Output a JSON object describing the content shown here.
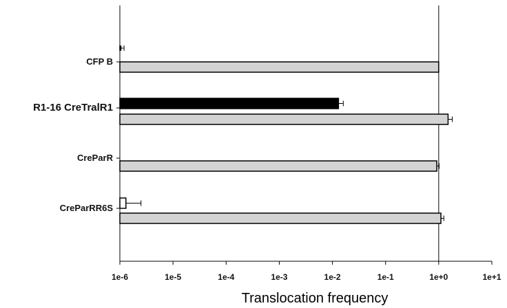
{
  "chart_data": {
    "type": "bar",
    "orientation": "horizontal",
    "xscale": "log",
    "xlabel": "Translocation frequency",
    "ylabel": "",
    "title": "",
    "xlim": [
      1e-06,
      10
    ],
    "x_tick_labels": [
      "1e-6",
      "1e-5",
      "1e-4",
      "1e-3",
      "1e-2",
      "1e-1",
      "1e+0",
      "1e+1"
    ],
    "categories": [
      "CFP B",
      "R1-16 CreTralR1",
      "CreParR",
      "CreParRR6S"
    ],
    "series": [
      {
        "color": "#000000",
        "values": [
          null,
          0.013,
          null,
          null
        ],
        "error_plus": [
          null,
          0.003,
          null,
          null
        ]
      },
      {
        "color": "#ffffff",
        "values": [
          1e-06,
          null,
          null,
          1.3e-06
        ],
        "error_plus": [
          2e-07,
          null,
          null,
          1.2e-06
        ]
      },
      {
        "color": "#d3d3d3",
        "values": [
          1.0,
          1.5,
          0.92,
          1.1
        ],
        "error_plus": [
          0.0,
          0.3,
          0.1,
          0.15
        ]
      }
    ],
    "reference_line": 1.0,
    "grid": false,
    "legend": "none"
  }
}
